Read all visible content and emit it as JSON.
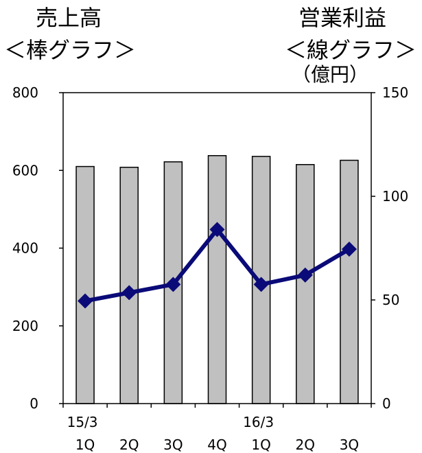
{
  "chart_data": {
    "type": "bar",
    "left_title": "売上高",
    "left_subtitle": "＜棒グラフ＞",
    "right_title": "営業利益",
    "right_subtitle": "＜線グラフ＞",
    "right_unit": "（億円）",
    "categories": [
      "1Q",
      "2Q",
      "3Q",
      "4Q",
      "1Q",
      "2Q",
      "3Q"
    ],
    "period_labels": [
      "15/3",
      "",
      "",
      "",
      "16/3",
      "",
      ""
    ],
    "bar_series": {
      "values": [
        610,
        608,
        622,
        638,
        636,
        615,
        626
      ],
      "ylim": [
        0,
        800
      ],
      "ticks": [
        0,
        200,
        400,
        600,
        800
      ],
      "color": "#c0c0c0"
    },
    "line_series": {
      "values": [
        49.5,
        53.5,
        57.5,
        84,
        57.5,
        62,
        74.5
      ],
      "ylim": [
        0,
        150
      ],
      "ticks": [
        0,
        50,
        100,
        150
      ],
      "color": "#0a0a78"
    },
    "grid": false
  }
}
